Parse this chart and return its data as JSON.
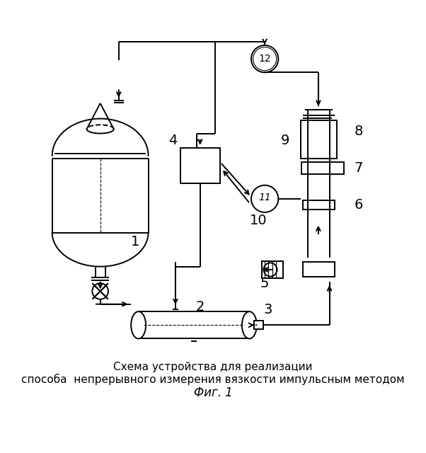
{
  "title_line1": "Схема устройства для реализации",
  "title_line2": "способа  непрерывного измерения вязкости импульсным методом",
  "title_line3": "Фиг. 1",
  "bg_color": "#ffffff",
  "line_color": "#000000",
  "figsize": [
    6.02,
    6.4
  ],
  "dpi": 100
}
